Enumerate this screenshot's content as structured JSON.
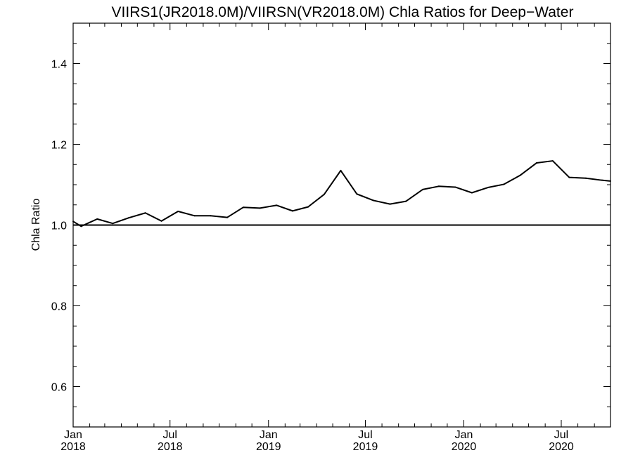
{
  "chart_data": {
    "type": "line",
    "title": "VIIRS1(JR2018.0M)/VIIRSN(VR2018.0M)  Chla Ratios for Deep−Water",
    "xlabel": "",
    "ylabel": "Chla Ratio",
    "xlim": [
      "2018-01-01",
      "2020-10-01"
    ],
    "ylim": [
      0.5,
      1.5
    ],
    "yticks": [
      {
        "value": 0.6,
        "label": "0.6"
      },
      {
        "value": 0.8,
        "label": "0.8"
      },
      {
        "value": 1.0,
        "label": "1.0"
      },
      {
        "value": 1.2,
        "label": "1.2"
      },
      {
        "value": 1.4,
        "label": "1.4"
      }
    ],
    "xticks": [
      {
        "date": "2018-01-01",
        "month": "Jan",
        "year": "2018"
      },
      {
        "date": "2018-07-01",
        "month": "Jul",
        "year": "2018"
      },
      {
        "date": "2019-01-01",
        "month": "Jan",
        "year": "2019"
      },
      {
        "date": "2019-07-01",
        "month": "Jul",
        "year": "2019"
      },
      {
        "date": "2020-01-01",
        "month": "Jan",
        "year": "2020"
      },
      {
        "date": "2020-07-01",
        "month": "Jul",
        "year": "2020"
      }
    ],
    "reference_line": 1.0,
    "grid": false,
    "series": [
      {
        "color": "#000000",
        "points": [
          {
            "x": "2018-01-01",
            "y": 1.009
          },
          {
            "x": "2018-01-16",
            "y": 0.997
          },
          {
            "x": "2018-02-15",
            "y": 1.015
          },
          {
            "x": "2018-03-16",
            "y": 1.004
          },
          {
            "x": "2018-04-15",
            "y": 1.018
          },
          {
            "x": "2018-05-16",
            "y": 1.03
          },
          {
            "x": "2018-06-15",
            "y": 1.01
          },
          {
            "x": "2018-07-16",
            "y": 1.034
          },
          {
            "x": "2018-08-16",
            "y": 1.023
          },
          {
            "x": "2018-09-15",
            "y": 1.023
          },
          {
            "x": "2018-10-16",
            "y": 1.019
          },
          {
            "x": "2018-11-15",
            "y": 1.044
          },
          {
            "x": "2018-12-16",
            "y": 1.042
          },
          {
            "x": "2019-01-16",
            "y": 1.049
          },
          {
            "x": "2019-02-15",
            "y": 1.035
          },
          {
            "x": "2019-03-16",
            "y": 1.045
          },
          {
            "x": "2019-04-15",
            "y": 1.076
          },
          {
            "x": "2019-05-16",
            "y": 1.135
          },
          {
            "x": "2019-06-15",
            "y": 1.077
          },
          {
            "x": "2019-07-16",
            "y": 1.061
          },
          {
            "x": "2019-08-16",
            "y": 1.052
          },
          {
            "x": "2019-09-15",
            "y": 1.059
          },
          {
            "x": "2019-10-16",
            "y": 1.088
          },
          {
            "x": "2019-11-15",
            "y": 1.096
          },
          {
            "x": "2019-12-16",
            "y": 1.094
          },
          {
            "x": "2020-01-16",
            "y": 1.08
          },
          {
            "x": "2020-02-15",
            "y": 1.093
          },
          {
            "x": "2020-03-16",
            "y": 1.101
          },
          {
            "x": "2020-04-15",
            "y": 1.123
          },
          {
            "x": "2020-05-16",
            "y": 1.154
          },
          {
            "x": "2020-06-15",
            "y": 1.159
          },
          {
            "x": "2020-07-16",
            "y": 1.118
          },
          {
            "x": "2020-08-16",
            "y": 1.116
          },
          {
            "x": "2020-09-15",
            "y": 1.111
          },
          {
            "x": "2020-10-01",
            "y": 1.109
          }
        ]
      }
    ]
  }
}
